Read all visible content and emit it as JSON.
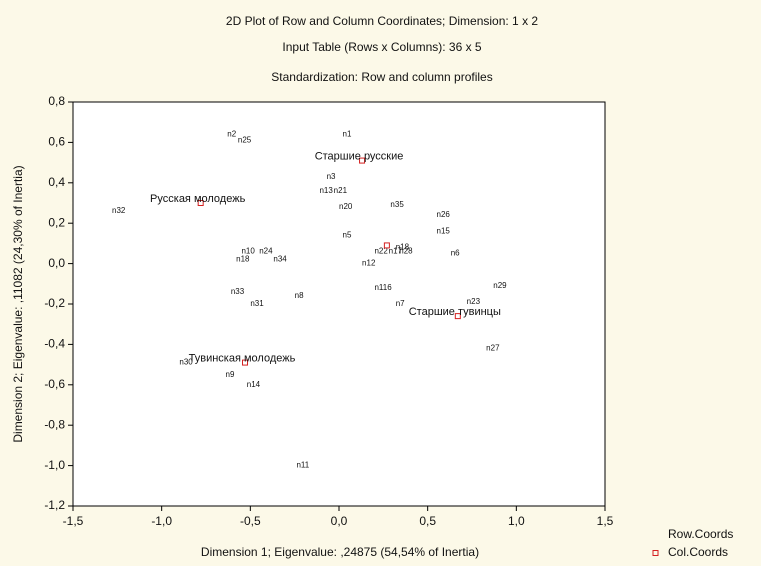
{
  "chart_data": {
    "type": "scatter",
    "title": "2D Plot of Row and Column Coordinates; Dimension: 1 x 2",
    "subtitle": [
      "Input Table (Rows x Columns): 36 x 5",
      "Standardization: Row and column profiles"
    ],
    "x_label": "Dimension 1; Eigenvalue: ,24875 (54,54% of Inertia)",
    "y_label": "Dimension 2; Eigenvalue: ,11082 (24,30% of Inertia)",
    "xlim": [
      -1.5,
      1.5
    ],
    "xticks": [
      {
        "value": -1.5,
        "label": "-1,5"
      },
      {
        "value": -1,
        "label": "-1,0"
      },
      {
        "value": -0.5,
        "label": "-0,5"
      },
      {
        "value": 0,
        "label": "0,0"
      },
      {
        "value": 0.5,
        "label": "0,5"
      },
      {
        "value": 1,
        "label": "1,0"
      },
      {
        "value": 1.5,
        "label": "1,5"
      }
    ],
    "ylim": [
      -1.2,
      0.8
    ],
    "yticks": [
      {
        "value": -1.2,
        "label": "-1,2"
      },
      {
        "value": -1,
        "label": "-1,0"
      },
      {
        "value": -0.8,
        "label": "-0,8"
      },
      {
        "value": -0.6,
        "label": "-0,6"
      },
      {
        "value": -0.4,
        "label": "-0,4"
      },
      {
        "value": -0.2,
        "label": "-0,2"
      },
      {
        "value": 0,
        "label": "0,0"
      },
      {
        "value": 0.2,
        "label": "0,2"
      },
      {
        "value": 0.4,
        "label": "0,4"
      },
      {
        "value": 0.6,
        "label": "0,6"
      },
      {
        "value": 0.8,
        "label": "0,8"
      }
    ],
    "series": [
      {
        "name": "Row.Coords",
        "marker": "none",
        "labels": [
          "n1",
          "n2",
          "n25",
          "n3",
          "n13",
          "n21",
          "n20",
          "n35",
          "n26",
          "n15",
          "n5",
          "n6",
          "n12",
          "n22",
          "n17",
          "n28",
          "n18",
          "n10",
          "n24",
          "n18",
          "n34",
          "n29",
          "n116",
          "n33",
          "n31",
          "n8",
          "n7",
          "n23",
          "n27",
          "n30",
          "n9",
          "n14",
          "n11",
          "n32"
        ],
        "x": [
          0.02,
          -0.63,
          -0.57,
          -0.07,
          -0.11,
          -0.03,
          0.0,
          0.29,
          0.55,
          0.55,
          0.02,
          0.63,
          0.13,
          0.2,
          0.28,
          0.34,
          0.32,
          -0.55,
          -0.45,
          -0.58,
          -0.37,
          0.87,
          0.2,
          -0.61,
          -0.5,
          -0.25,
          0.32,
          0.72,
          0.83,
          -0.9,
          -0.64,
          -0.52,
          -0.24,
          -1.28
        ],
        "values": [
          0.64,
          0.64,
          0.61,
          0.43,
          0.36,
          0.36,
          0.28,
          0.29,
          0.24,
          0.16,
          0.14,
          0.05,
          0.0,
          0.06,
          0.06,
          0.06,
          0.08,
          0.06,
          0.06,
          0.02,
          0.02,
          -0.11,
          -0.12,
          -0.14,
          -0.2,
          -0.16,
          -0.2,
          -0.19,
          -0.42,
          -0.49,
          -0.55,
          -0.6,
          -1.0,
          0.26
        ]
      },
      {
        "name": "Col.Coords",
        "color": "#d42020",
        "marker": "square",
        "labels": [
          "Старшие русские",
          "Русская молодежь",
          "Старшие тувинцы",
          "Тувинская молодежь",
          null
        ],
        "x": [
          0.13,
          -0.78,
          0.67,
          -0.53,
          0.27
        ],
        "values": [
          0.51,
          0.3,
          -0.26,
          -0.49,
          0.09
        ]
      }
    ]
  }
}
